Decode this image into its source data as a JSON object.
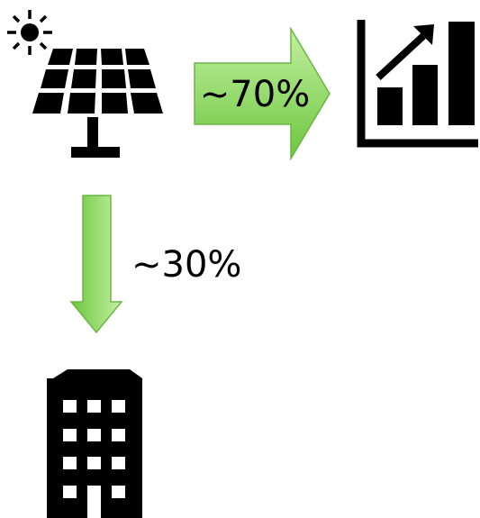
{
  "colors": {
    "arrow_fill_light": "#c3f0a0",
    "arrow_fill_dark": "#6cc63f",
    "arrow_stroke": "#6cb545",
    "icon": "#000000",
    "background": "#ffffff"
  },
  "icons": {
    "sun": "sun-icon",
    "solar_panel": "solar-panel-icon",
    "chart": "growth-chart-icon",
    "building": "building-icon"
  },
  "flows": {
    "to_chart": {
      "label": "~70%",
      "value": 70
    },
    "to_building": {
      "label": "~30%",
      "value": 30
    }
  }
}
